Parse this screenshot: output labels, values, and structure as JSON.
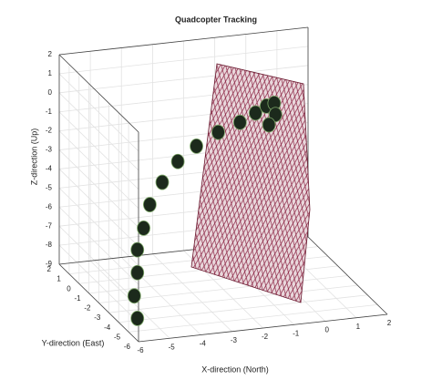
{
  "chart_data": {
    "type": "scatter3d",
    "title": "Quadcopter Tracking",
    "xlabel": "X-direction (North)",
    "ylabel": "Y-direction (East)",
    "zlabel": "Z-direction (Up)",
    "xlim": [
      -6,
      2
    ],
    "ylim": [
      -6,
      2
    ],
    "zlim": [
      -9,
      2
    ],
    "xticks": [
      -6,
      -5,
      -4,
      -3,
      -2,
      -1,
      0,
      1,
      2
    ],
    "yticks": [
      -6,
      -5,
      -4,
      -3,
      -2,
      -1,
      0,
      1,
      2
    ],
    "zticks": [
      -9,
      -8,
      -7,
      -6,
      -5,
      -4,
      -3,
      -2,
      -1,
      0,
      1,
      2
    ],
    "grid": true,
    "color": "#1c2a1c",
    "x": [
      -5.4,
      -5.5,
      -5.4,
      -5.4,
      -5.2,
      -5.0,
      -4.6,
      -4.1,
      -3.5,
      -2.8,
      -2.1,
      -1.6,
      -1.25,
      -1.0,
      -0.96,
      -1.17
    ],
    "y": [
      -4,
      -4,
      -4,
      -4,
      -4,
      -4,
      -4,
      -4,
      -4,
      -4,
      -4,
      -4,
      -4,
      -4,
      -4,
      -4
    ],
    "z": [
      -8.9,
      -7.7,
      -6.5,
      -5.3,
      -4.2,
      -3.0,
      -1.9,
      -0.9,
      -0.2,
      0.4,
      0.8,
      1.2,
      1.5,
      1.6,
      1.0,
      0.5
    ]
  }
}
